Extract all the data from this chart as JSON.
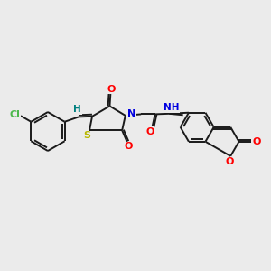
{
  "bg_color": "#ebebeb",
  "bond_color": "#1a1a1a",
  "atom_colors": {
    "Cl": "#4db84d",
    "S": "#b8b800",
    "N": "#0000e0",
    "O": "#ff0000",
    "H": "#008080",
    "C": "#1a1a1a"
  },
  "figsize": [
    3.0,
    3.0
  ],
  "dpi": 100
}
